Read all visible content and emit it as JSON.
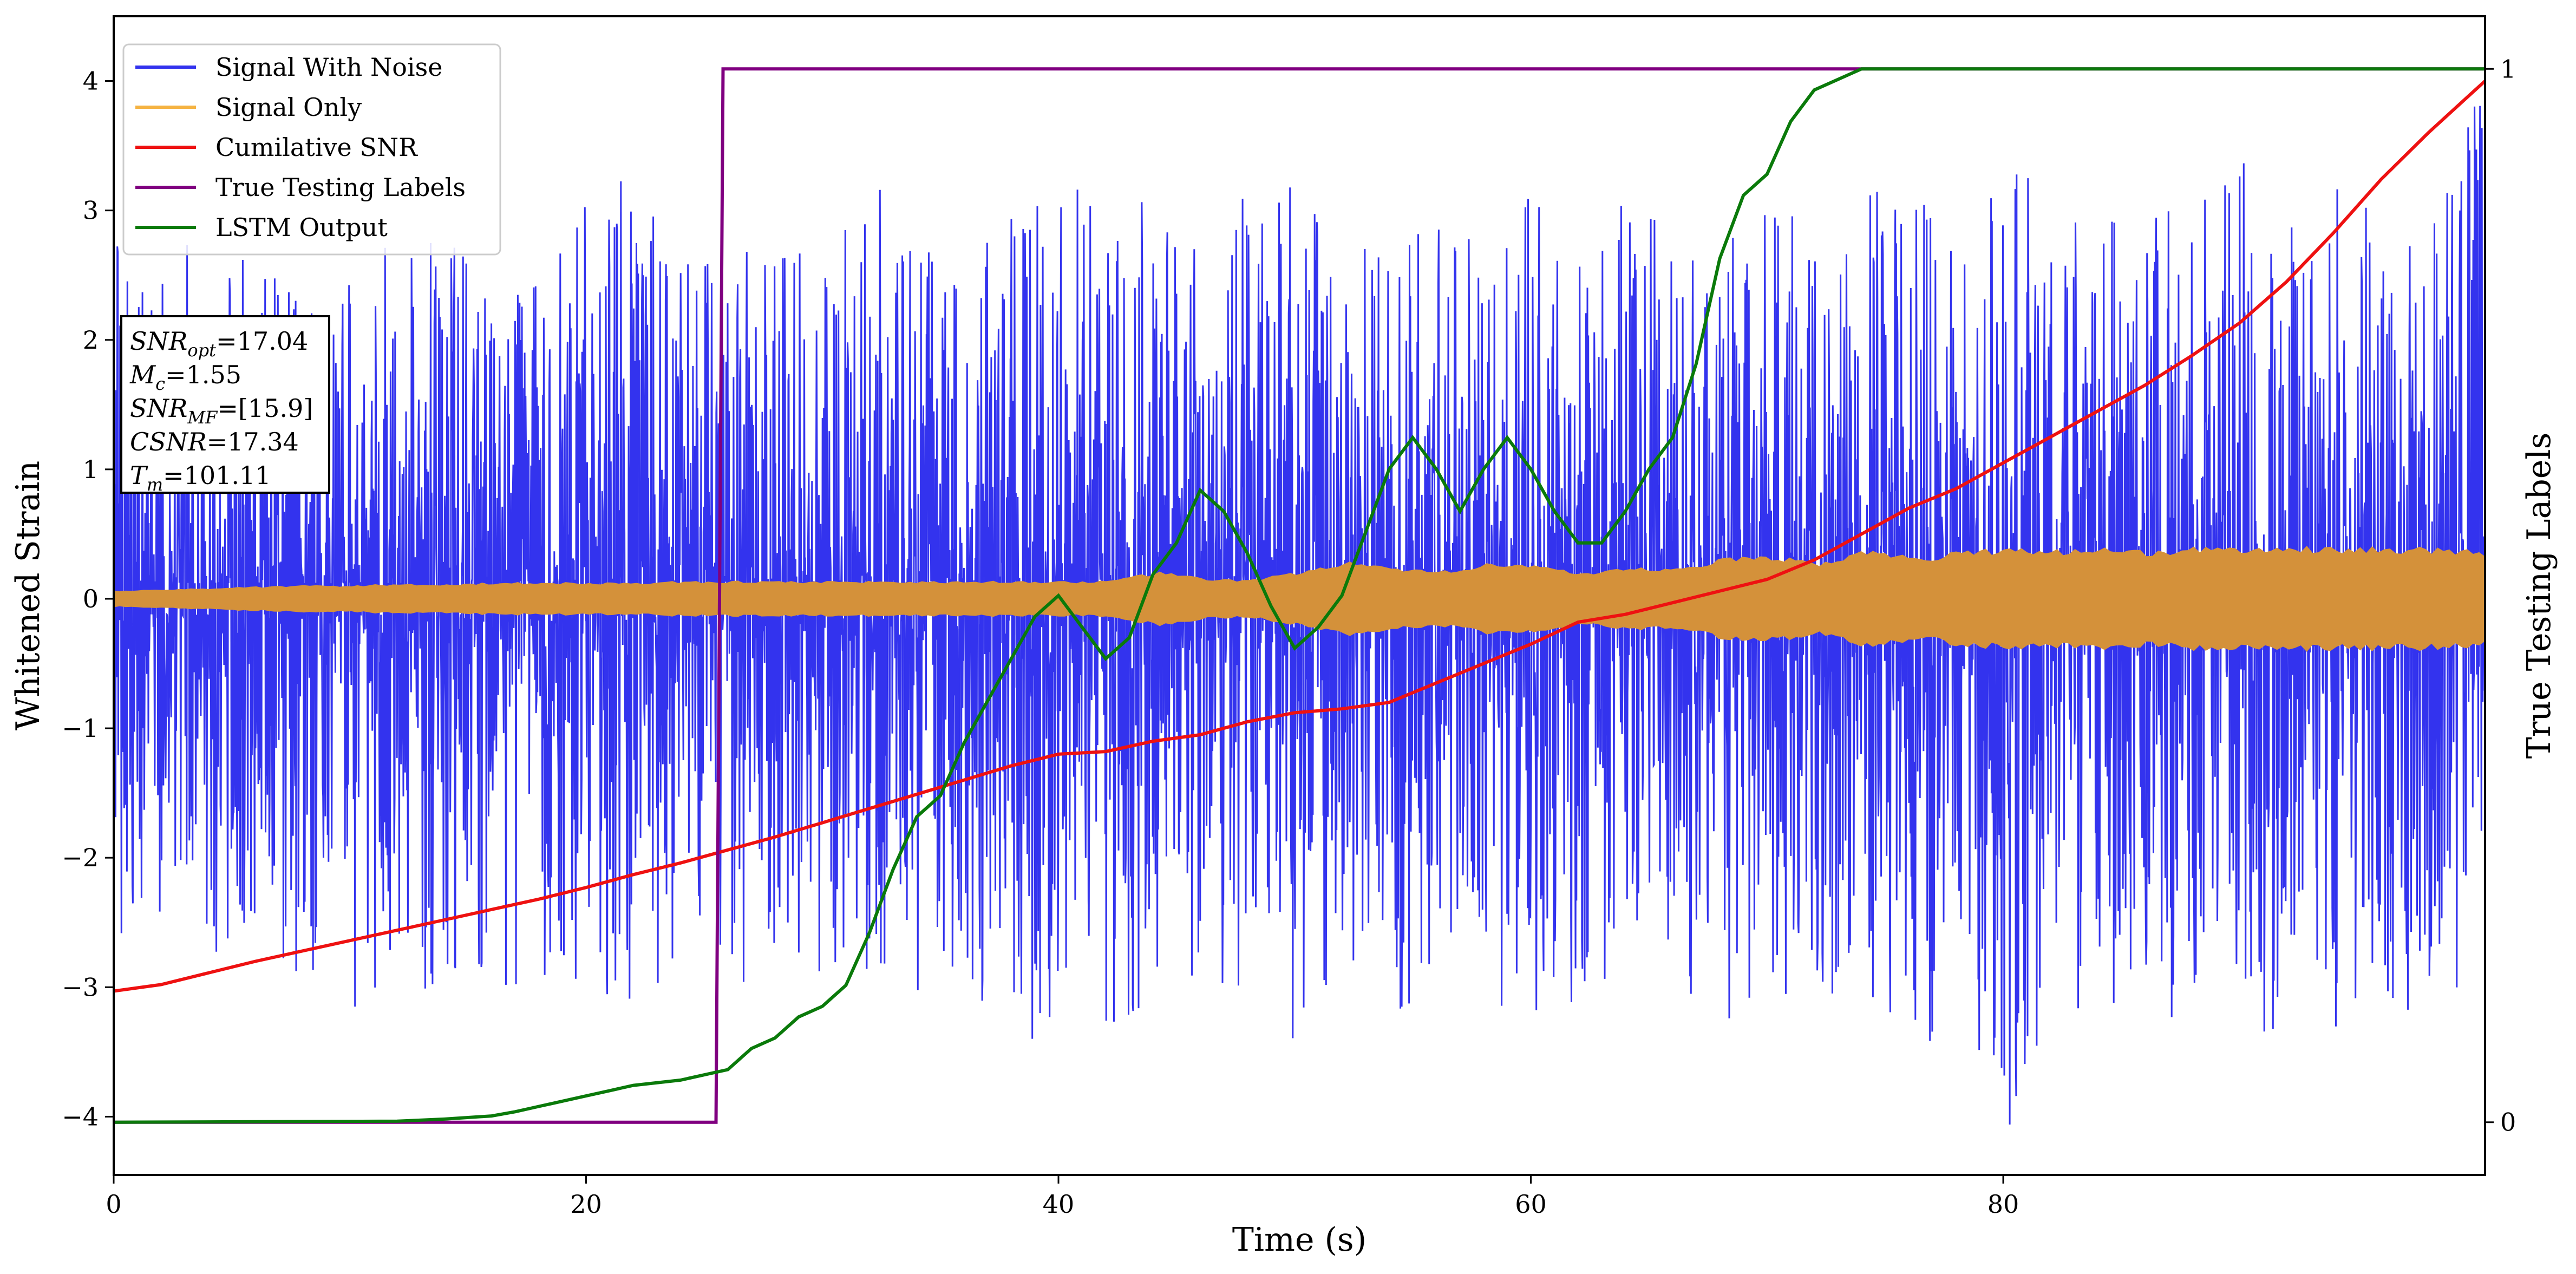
{
  "chart_data": {
    "type": "line",
    "xlabel": "Time (s)",
    "ylabel": "Whitened Strain",
    "ylabel_right": "True Testing Labels",
    "xlim": [
      0,
      100.4
    ],
    "ylim": [
      -4.45,
      4.5
    ],
    "ylim_right": [
      -0.05,
      1.05
    ],
    "x_ticks": [
      0,
      20,
      40,
      60,
      80
    ],
    "y_ticks": [
      -4,
      -3,
      -2,
      -1,
      0,
      1,
      2,
      3,
      4
    ],
    "y_ticks_right": [
      0,
      1
    ],
    "legend_position": "upper-left",
    "grid": false,
    "annotation": {
      "lines": [
        {
          "sym": "SNR",
          "sub": "opt",
          "val": "=17.04"
        },
        {
          "sym": "M",
          "sub": "c",
          "val": "=1.55"
        },
        {
          "sym": "SNR",
          "sub": "MF",
          "val": "=[15.9]"
        },
        {
          "sym": "CSNR",
          "sub": "",
          "val": "=17.34"
        },
        {
          "sym": "T",
          "sub": "m",
          "val": "=101.11"
        }
      ]
    },
    "series": [
      {
        "name": "Signal With Noise",
        "color": "#3333ee",
        "axis": "left",
        "kind": "noise",
        "x_range": [
          0,
          100.4
        ],
        "envelope_max": [
          3.0,
          2.6,
          2.9,
          2.6,
          2.3,
          2.5,
          2.8,
          2.8,
          2.4,
          2.6,
          3.3,
          3.4,
          2.8,
          2.5,
          3.2,
          2.6,
          3.3,
          3.0,
          2.6,
          3.2,
          3.3,
          2.9,
          3.4,
          2.6,
          3.3,
          3.5,
          2.7,
          3.3,
          2.9,
          2.8,
          3.2,
          2.6,
          3.4,
          3.1,
          2.9,
          3.0,
          3.0,
          3.2,
          3.1,
          3.0,
          3.4,
          3.0,
          2.9,
          3.2,
          3.3,
          3.4,
          3.1,
          3.3,
          2.9,
          3.1,
          4.1
        ],
        "envelope_min": [
          -2.8,
          -2.8,
          -2.8,
          -2.7,
          -3.0,
          -3.2,
          -3.2,
          -2.9,
          -3.1,
          -3.0,
          -3.2,
          -3.1,
          -3.0,
          -3.1,
          -3.0,
          -3.0,
          -3.2,
          -3.1,
          -3.1,
          -3.4,
          -3.4,
          -3.5,
          -3.0,
          -3.0,
          -3.0,
          -3.5,
          -3.0,
          -3.2,
          -3.2,
          -3.2,
          -3.2,
          -3.2,
          -3.0,
          -3.0,
          -3.3,
          -3.3,
          -3.1,
          -3.1,
          -3.6,
          -3.3,
          -4.1,
          -3.3,
          -3.2,
          -3.4,
          -3.0,
          -3.4,
          -3.4,
          -3.3,
          -3.3,
          -3.1,
          -3.3
        ]
      },
      {
        "name": "Signal Only",
        "color": "#f5b342",
        "axis": "left",
        "kind": "band",
        "x_range": [
          0,
          100.4
        ],
        "amplitude": [
          0.06,
          0.07,
          0.08,
          0.09,
          0.1,
          0.1,
          0.11,
          0.11,
          0.12,
          0.12,
          0.12,
          0.12,
          0.13,
          0.13,
          0.13,
          0.13,
          0.13,
          0.13,
          0.13,
          0.13,
          0.13,
          0.13,
          0.2,
          0.15,
          0.14,
          0.2,
          0.28,
          0.22,
          0.2,
          0.27,
          0.25,
          0.18,
          0.23,
          0.22,
          0.3,
          0.32,
          0.27,
          0.36,
          0.3,
          0.35,
          0.38,
          0.36,
          0.38,
          0.35,
          0.38,
          0.38,
          0.38,
          0.38,
          0.38,
          0.37,
          0.35
        ]
      },
      {
        "name": "Cumilative SNR",
        "color": "#ee1111",
        "axis": "left",
        "kind": "line",
        "x": [
          0,
          2,
          4,
          6,
          8,
          10,
          12,
          14,
          16,
          18,
          20,
          22,
          24,
          26,
          28,
          30,
          32,
          34,
          36,
          38,
          40,
          42,
          44,
          46,
          48,
          50,
          52,
          54,
          56,
          58,
          60,
          62,
          64,
          66,
          68,
          70,
          72,
          74,
          76,
          78,
          80,
          82,
          84,
          86,
          88,
          90,
          92,
          94,
          96,
          98,
          100.4
        ],
        "y": [
          -3.03,
          -2.98,
          -2.89,
          -2.8,
          -2.72,
          -2.64,
          -2.56,
          -2.48,
          -2.4,
          -2.32,
          -2.23,
          -2.13,
          -2.04,
          -1.94,
          -1.84,
          -1.73,
          -1.62,
          -1.51,
          -1.4,
          -1.29,
          -1.2,
          -1.18,
          -1.1,
          -1.05,
          -0.95,
          -0.88,
          -0.85,
          -0.8,
          -0.65,
          -0.5,
          -0.35,
          -0.18,
          -0.12,
          -0.03,
          0.06,
          0.15,
          0.3,
          0.5,
          0.7,
          0.85,
          1.05,
          1.25,
          1.45,
          1.65,
          1.88,
          2.13,
          2.45,
          2.83,
          3.24,
          3.6,
          4.0
        ]
      },
      {
        "name": "True Testing Labels",
        "color": "#800080",
        "axis": "right",
        "kind": "line",
        "x": [
          0,
          25.5,
          25.8,
          100.4
        ],
        "y": [
          0,
          0,
          1,
          1
        ]
      },
      {
        "name": "LSTM Output",
        "color": "#0a7a0a",
        "axis": "right",
        "kind": "line",
        "x": [
          0,
          12,
          14,
          16,
          17,
          18,
          19,
          20,
          21,
          22,
          24,
          25,
          26,
          27,
          28,
          29,
          30,
          31,
          32,
          33,
          34,
          35,
          36,
          37,
          38,
          39,
          40,
          41,
          42,
          43,
          44,
          45,
          46,
          47,
          48,
          49,
          50,
          51,
          52,
          53,
          54,
          55,
          56,
          57,
          58,
          59,
          60,
          61,
          62,
          63,
          64,
          65,
          66,
          67,
          68,
          69,
          70,
          71,
          72,
          73,
          74,
          75,
          80,
          100.4
        ],
        "y": [
          0,
          0.001,
          0.003,
          0.006,
          0.01,
          0.015,
          0.02,
          0.025,
          0.03,
          0.035,
          0.04,
          0.045,
          0.05,
          0.07,
          0.08,
          0.1,
          0.11,
          0.13,
          0.18,
          0.24,
          0.29,
          0.31,
          0.36,
          0.4,
          0.44,
          0.48,
          0.5,
          0.47,
          0.44,
          0.46,
          0.52,
          0.55,
          0.6,
          0.58,
          0.54,
          0.49,
          0.45,
          0.47,
          0.5,
          0.56,
          0.62,
          0.65,
          0.62,
          0.58,
          0.62,
          0.65,
          0.62,
          0.58,
          0.55,
          0.55,
          0.58,
          0.62,
          0.65,
          0.72,
          0.82,
          0.88,
          0.9,
          0.95,
          0.98,
          0.99,
          1.0,
          1.0,
          1.0,
          1.0
        ]
      }
    ]
  }
}
